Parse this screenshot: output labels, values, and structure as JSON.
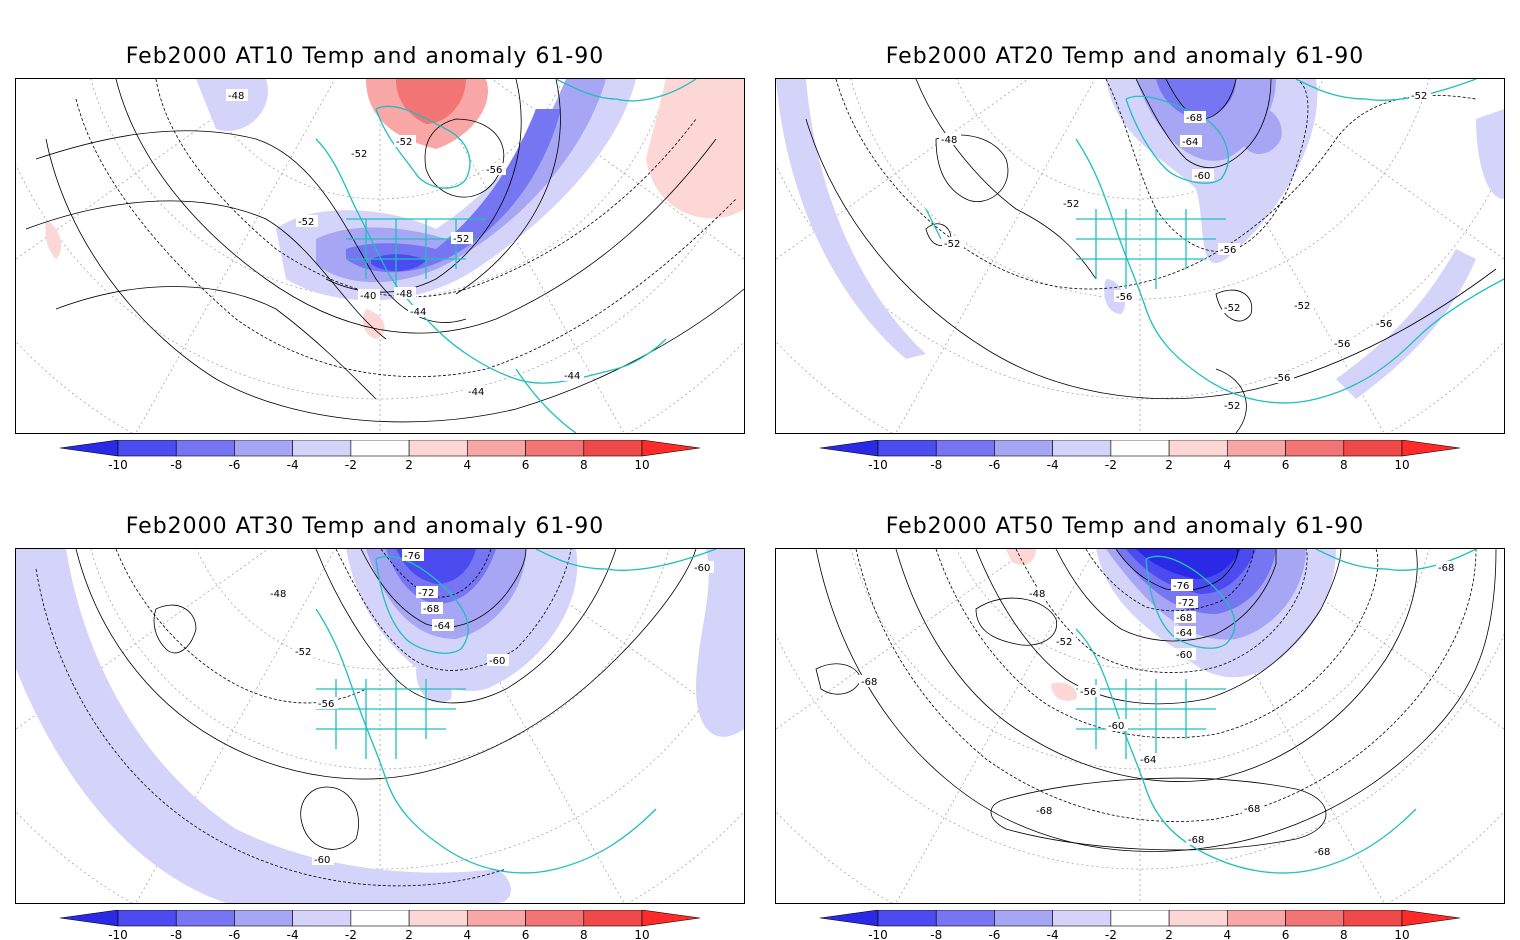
{
  "panels": [
    {
      "id": "at10",
      "title": "Feb2000 AT10 Temp and anomaly 61-90",
      "contour_labels": [
        "-48",
        "-52",
        "-52",
        "-56",
        "-52",
        "-52",
        "-40",
        "-48",
        "-44",
        "-44",
        "-44"
      ]
    },
    {
      "id": "at20",
      "title": "Feb2000 AT20 Temp and anomaly 61-90",
      "contour_labels": [
        "-48",
        "-52",
        "-68",
        "-64",
        "-60",
        "-52",
        "-52",
        "-56",
        "-56",
        "-52",
        "-52",
        "-56",
        "-56",
        "-56",
        "-52"
      ]
    },
    {
      "id": "at30",
      "title": "Feb2000 AT30 Temp and anomaly 61-90",
      "contour_labels": [
        "-76",
        "-72",
        "-68",
        "-64",
        "-48",
        "-52",
        "-56",
        "-60",
        "-60",
        "-60"
      ]
    },
    {
      "id": "at50",
      "title": "Feb2000 AT50 Temp and anomaly 61-90",
      "contour_labels": [
        "-76",
        "-72",
        "-68",
        "-64",
        "-60",
        "-48",
        "-52",
        "-56",
        "-60",
        "-64",
        "-68",
        "-68",
        "-68",
        "-68",
        "-68",
        "-68"
      ]
    }
  ],
  "colorbar": {
    "tick_labels": [
      "-10",
      "-8",
      "-6",
      "-4",
      "-2",
      "2",
      "4",
      "6",
      "8",
      "10"
    ],
    "colors": [
      "#2a2ae6",
      "#4b4bf0",
      "#7676f2",
      "#a6a6f5",
      "#d4d4fb",
      "#ffffff",
      "#fdd6d6",
      "#f9a6a6",
      "#f27474",
      "#ef4a4a",
      "#ff2a2a"
    ]
  },
  "colors": {
    "coastline": "#1fbfbf",
    "contour": "#000000",
    "graticule": "#9a9a9a"
  }
}
